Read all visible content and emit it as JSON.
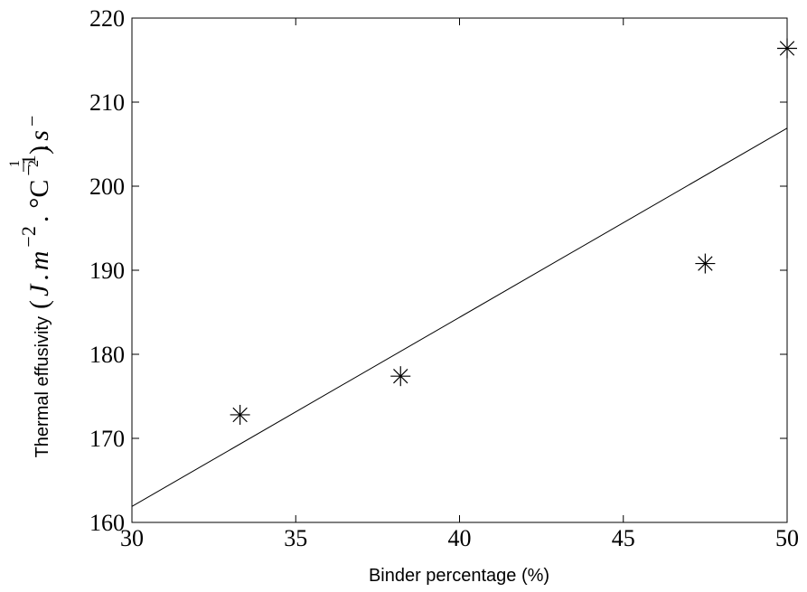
{
  "chart_data": {
    "type": "scatter",
    "xlabel": "Binder percentage (%)",
    "ylabel": {
      "prefix": "Thermal effusivity",
      "open": "(",
      "J": "J",
      "dot1": ".",
      "m": "m",
      "exp_m": "−2",
      "dot2": ".",
      "degC": "°C",
      "exp_c": "−1",
      "dot3": ".",
      "s": "s",
      "exp_s_minus": "−",
      "exp_s_num": "1",
      "exp_s_den": "2",
      "close": ")"
    },
    "xlim": [
      30,
      50
    ],
    "ylim": [
      160,
      220
    ],
    "xticks": [
      30,
      35,
      40,
      45,
      50
    ],
    "yticks": [
      160,
      170,
      180,
      190,
      200,
      210,
      220
    ],
    "grid": false,
    "points": [
      {
        "x": 33.3,
        "y": 172.8
      },
      {
        "x": 38.2,
        "y": 177.4
      },
      {
        "x": 47.5,
        "y": 190.8
      },
      {
        "x": 50.0,
        "y": 216.4
      }
    ],
    "fit_line": {
      "x": [
        30,
        50
      ],
      "y": [
        161.9,
        206.9
      ]
    },
    "colors": {
      "axes": "#000000",
      "marker": "#000000",
      "line": "#000000"
    }
  }
}
